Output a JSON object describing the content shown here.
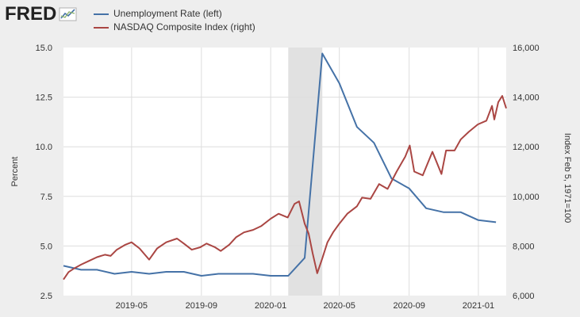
{
  "brand": {
    "logo_text": "FRED"
  },
  "legend": {
    "items": [
      {
        "label": "Unemployment Rate (left)",
        "color": "#4572a7"
      },
      {
        "label": "NASDAQ Composite Index (right)",
        "color": "#aa4643"
      }
    ]
  },
  "colors": {
    "background": "#eeeeee",
    "plot_background": "#ffffff",
    "recession_shading": "#e1e1e1",
    "grid": "#dddddd"
  },
  "chart_data": {
    "type": "line",
    "title": "",
    "xlabel": "",
    "ylabel": "Percent",
    "y2label": "Index Feb 5, 1971=100",
    "x_range": [
      "2019-01-01",
      "2021-02-19"
    ],
    "ylim": [
      2.5,
      15.0
    ],
    "y2lim": [
      6000,
      16000
    ],
    "yticks": [
      "2.5",
      "5.0",
      "7.5",
      "10.0",
      "12.5",
      "15.0"
    ],
    "y2ticks": [
      "6,000",
      "8,000",
      "10,000",
      "12,000",
      "14,000",
      "16,000"
    ],
    "xticks": [
      {
        "label": "2019-05",
        "date": "2019-05-01"
      },
      {
        "label": "2019-09",
        "date": "2019-09-01"
      },
      {
        "label": "2020-01",
        "date": "2020-01-01"
      },
      {
        "label": "2020-05",
        "date": "2020-05-01"
      },
      {
        "label": "2020-09",
        "date": "2020-09-01"
      },
      {
        "label": "2021-01",
        "date": "2021-01-01"
      }
    ],
    "recession": {
      "start": "2020-02-01",
      "end": "2020-04-01"
    },
    "grid": true,
    "legend_position": "top-left",
    "series": [
      {
        "name": "Unemployment Rate (left)",
        "axis": "left",
        "color": "#4572a7",
        "points": [
          [
            "2019-01-01",
            4.0
          ],
          [
            "2019-02-01",
            3.8
          ],
          [
            "2019-03-01",
            3.8
          ],
          [
            "2019-04-01",
            3.6
          ],
          [
            "2019-05-01",
            3.7
          ],
          [
            "2019-06-01",
            3.6
          ],
          [
            "2019-07-01",
            3.7
          ],
          [
            "2019-08-01",
            3.7
          ],
          [
            "2019-09-01",
            3.5
          ],
          [
            "2019-10-01",
            3.6
          ],
          [
            "2019-11-01",
            3.6
          ],
          [
            "2019-12-01",
            3.6
          ],
          [
            "2020-01-01",
            3.5
          ],
          [
            "2020-02-01",
            3.5
          ],
          [
            "2020-03-01",
            4.4
          ],
          [
            "2020-04-01",
            14.7
          ],
          [
            "2020-05-01",
            13.2
          ],
          [
            "2020-06-01",
            11.0
          ],
          [
            "2020-07-01",
            10.2
          ],
          [
            "2020-08-01",
            8.4
          ],
          [
            "2020-09-01",
            7.9
          ],
          [
            "2020-10-01",
            6.9
          ],
          [
            "2020-11-01",
            6.7
          ],
          [
            "2020-12-01",
            6.7
          ],
          [
            "2021-01-01",
            6.3
          ],
          [
            "2021-02-01",
            6.2
          ]
        ]
      },
      {
        "name": "NASDAQ Composite Index (right)",
        "axis": "right",
        "color": "#aa4643",
        "points": [
          [
            "2019-01-01",
            6650
          ],
          [
            "2019-01-10",
            6950
          ],
          [
            "2019-01-20",
            7100
          ],
          [
            "2019-02-01",
            7250
          ],
          [
            "2019-02-15",
            7400
          ],
          [
            "2019-03-01",
            7550
          ],
          [
            "2019-03-15",
            7650
          ],
          [
            "2019-03-25",
            7600
          ],
          [
            "2019-04-05",
            7850
          ],
          [
            "2019-04-20",
            8050
          ],
          [
            "2019-05-01",
            8150
          ],
          [
            "2019-05-15",
            7900
          ],
          [
            "2019-06-01",
            7450
          ],
          [
            "2019-06-15",
            7900
          ],
          [
            "2019-07-01",
            8150
          ],
          [
            "2019-07-20",
            8300
          ],
          [
            "2019-08-01",
            8100
          ],
          [
            "2019-08-15",
            7850
          ],
          [
            "2019-08-30",
            7950
          ],
          [
            "2019-09-10",
            8100
          ],
          [
            "2019-09-25",
            7950
          ],
          [
            "2019-10-05",
            7800
          ],
          [
            "2019-10-20",
            8050
          ],
          [
            "2019-11-01",
            8350
          ],
          [
            "2019-11-15",
            8550
          ],
          [
            "2019-12-01",
            8650
          ],
          [
            "2019-12-15",
            8800
          ],
          [
            "2020-01-01",
            9100
          ],
          [
            "2020-01-15",
            9300
          ],
          [
            "2020-01-31",
            9150
          ],
          [
            "2020-02-12",
            9700
          ],
          [
            "2020-02-20",
            9800
          ],
          [
            "2020-03-01",
            8900
          ],
          [
            "2020-03-08",
            8500
          ],
          [
            "2020-03-15",
            7700
          ],
          [
            "2020-03-23",
            6900
          ],
          [
            "2020-04-01",
            7500
          ],
          [
            "2020-04-10",
            8150
          ],
          [
            "2020-04-20",
            8550
          ],
          [
            "2020-05-01",
            8900
          ],
          [
            "2020-05-15",
            9300
          ],
          [
            "2020-06-01",
            9600
          ],
          [
            "2020-06-10",
            9950
          ],
          [
            "2020-06-25",
            9900
          ],
          [
            "2020-07-10",
            10500
          ],
          [
            "2020-07-25",
            10300
          ],
          [
            "2020-08-10",
            11000
          ],
          [
            "2020-08-25",
            11600
          ],
          [
            "2020-09-02",
            12050
          ],
          [
            "2020-09-10",
            11000
          ],
          [
            "2020-09-25",
            10850
          ],
          [
            "2020-10-12",
            11800
          ],
          [
            "2020-10-28",
            10900
          ],
          [
            "2020-11-05",
            11850
          ],
          [
            "2020-11-20",
            11850
          ],
          [
            "2020-12-01",
            12300
          ],
          [
            "2020-12-15",
            12600
          ],
          [
            "2020-12-31",
            12900
          ],
          [
            "2021-01-15",
            13050
          ],
          [
            "2021-01-25",
            13650
          ],
          [
            "2021-01-29",
            13100
          ],
          [
            "2021-02-05",
            13800
          ],
          [
            "2021-02-12",
            14050
          ],
          [
            "2021-02-19",
            13550
          ]
        ]
      }
    ]
  }
}
